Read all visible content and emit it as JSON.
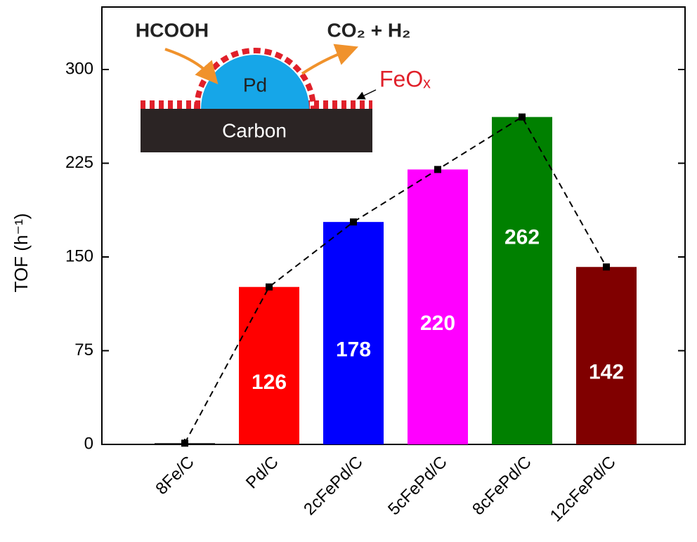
{
  "chart_data": {
    "type": "bar",
    "ylabel": "TOF (h⁻¹)",
    "categories": [
      "8Fe/C",
      "Pd/C",
      "2cFePd/C",
      "5cFePd/C",
      "8cFePd/C",
      "12cFePd/C"
    ],
    "series": [
      {
        "name": "TOF",
        "values": [
          1,
          126,
          178,
          220,
          262,
          142
        ],
        "colors": [
          "#111111",
          "#ff0000",
          "#0000ff",
          "#ff00ff",
          "#008000",
          "#800000"
        ]
      }
    ],
    "ylim": [
      0,
      350
    ],
    "yticks": [
      0,
      75,
      150,
      225,
      300
    ],
    "line": {
      "style": "dashed",
      "color": "#000000"
    },
    "inset": {
      "reactant": "HCOOH",
      "products": "CO₂ + H₂",
      "metal": "Pd",
      "shell": "FeOₓ",
      "support": "Carbon"
    }
  }
}
